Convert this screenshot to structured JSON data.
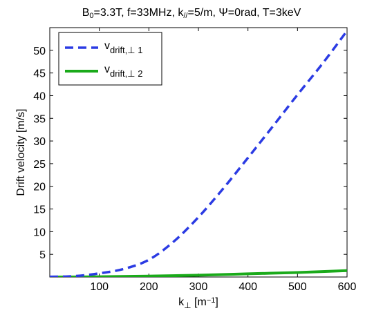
{
  "chart_data": {
    "type": "line",
    "title": {
      "parts": [
        {
          "t": "B",
          "sub": "0"
        },
        {
          "t": "=3.3T, f=33MHz, k",
          "sub": "//"
        },
        {
          "t": "=5/m, Ψ=0rad, T=3keV",
          "sub": ""
        }
      ]
    },
    "xlabel": {
      "base": "k",
      "sub": "⊥",
      "rest": " [m",
      "sup": "−1",
      "end": "]"
    },
    "ylabel": "Drift velocity [m/s]",
    "xlim": [
      0,
      600
    ],
    "ylim": [
      0,
      55
    ],
    "xticks": [
      100,
      200,
      300,
      400,
      500,
      600
    ],
    "yticks": [
      5,
      10,
      15,
      20,
      25,
      30,
      35,
      40,
      45,
      50
    ],
    "grid": false,
    "legend_position": "top-left",
    "series": [
      {
        "name": {
          "base": "v",
          "sub": "drift,⊥ 1"
        },
        "color": "#2b3be3",
        "style": "dashed",
        "x": [
          0,
          50,
          100,
          150,
          200,
          250,
          300,
          350,
          400,
          450,
          500,
          550,
          600
        ],
        "y": [
          0.05,
          0.2,
          0.8,
          1.8,
          3.8,
          7.8,
          13.2,
          19.5,
          26.3,
          33.2,
          40.2,
          47.0,
          54.3
        ]
      },
      {
        "name": {
          "base": "v",
          "sub": "drift,⊥ 2"
        },
        "color": "#1aaa1a",
        "style": "solid",
        "x": [
          0,
          100,
          200,
          300,
          400,
          500,
          600
        ],
        "y": [
          0.0,
          0.05,
          0.2,
          0.4,
          0.7,
          1.0,
          1.4
        ]
      }
    ]
  }
}
